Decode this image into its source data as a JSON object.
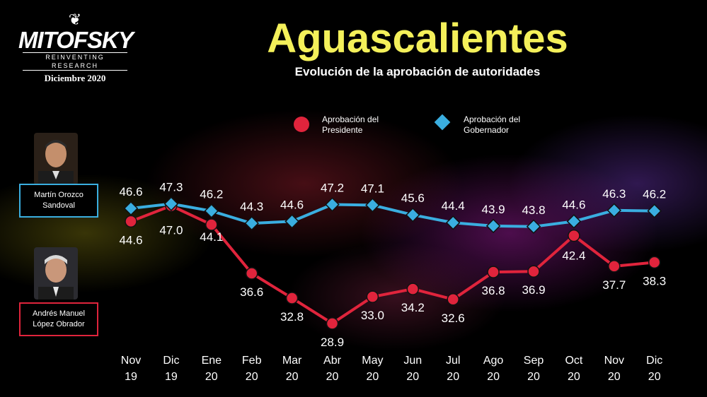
{
  "header": {
    "logo_name": "MITOFSKY",
    "logo_tagline": "REINVENTING RESEARCH",
    "logo_date": "Diciembre 2020"
  },
  "people": {
    "governor": {
      "line1": "Martín Orozco",
      "line2": "Sandoval"
    },
    "president": {
      "line1": "Andrés Manuel",
      "line2": "López Obrador"
    }
  },
  "colors": {
    "president": "#e0243c",
    "governor": "#3aaee0",
    "title": "#f4f05a"
  },
  "chart_data": {
    "type": "line",
    "title": "Aguascalientes",
    "subtitle": "Evolución de la aprobación de autoridades",
    "categories": [
      [
        "Nov",
        "19"
      ],
      [
        "Dic",
        "19"
      ],
      [
        "Ene",
        "20"
      ],
      [
        "Feb",
        "20"
      ],
      [
        "Mar",
        "20"
      ],
      [
        "Abr",
        "20"
      ],
      [
        "May",
        "20"
      ],
      [
        "Jun",
        "20"
      ],
      [
        "Jul",
        "20"
      ],
      [
        "Ago",
        "20"
      ],
      [
        "Sep",
        "20"
      ],
      [
        "Oct",
        "20"
      ],
      [
        "Nov",
        "20"
      ],
      [
        "Dic",
        "20"
      ]
    ],
    "ylim": [
      25,
      50
    ],
    "grid": false,
    "legend_position": "top-center",
    "series": [
      {
        "key": "president",
        "name_line1": "Aprobación del",
        "name_line2": "Presidente",
        "marker": "circle",
        "values": [
          44.6,
          47.0,
          44.1,
          36.6,
          32.8,
          28.9,
          33.0,
          34.2,
          32.6,
          36.8,
          36.9,
          42.4,
          37.7,
          38.3
        ]
      },
      {
        "key": "governor",
        "name_line1": "Aprobación del",
        "name_line2": "Gobernador",
        "marker": "diamond",
        "values": [
          46.6,
          47.3,
          46.2,
          44.3,
          44.6,
          47.2,
          47.1,
          45.6,
          44.4,
          43.9,
          43.8,
          44.6,
          46.3,
          46.2
        ]
      }
    ]
  }
}
